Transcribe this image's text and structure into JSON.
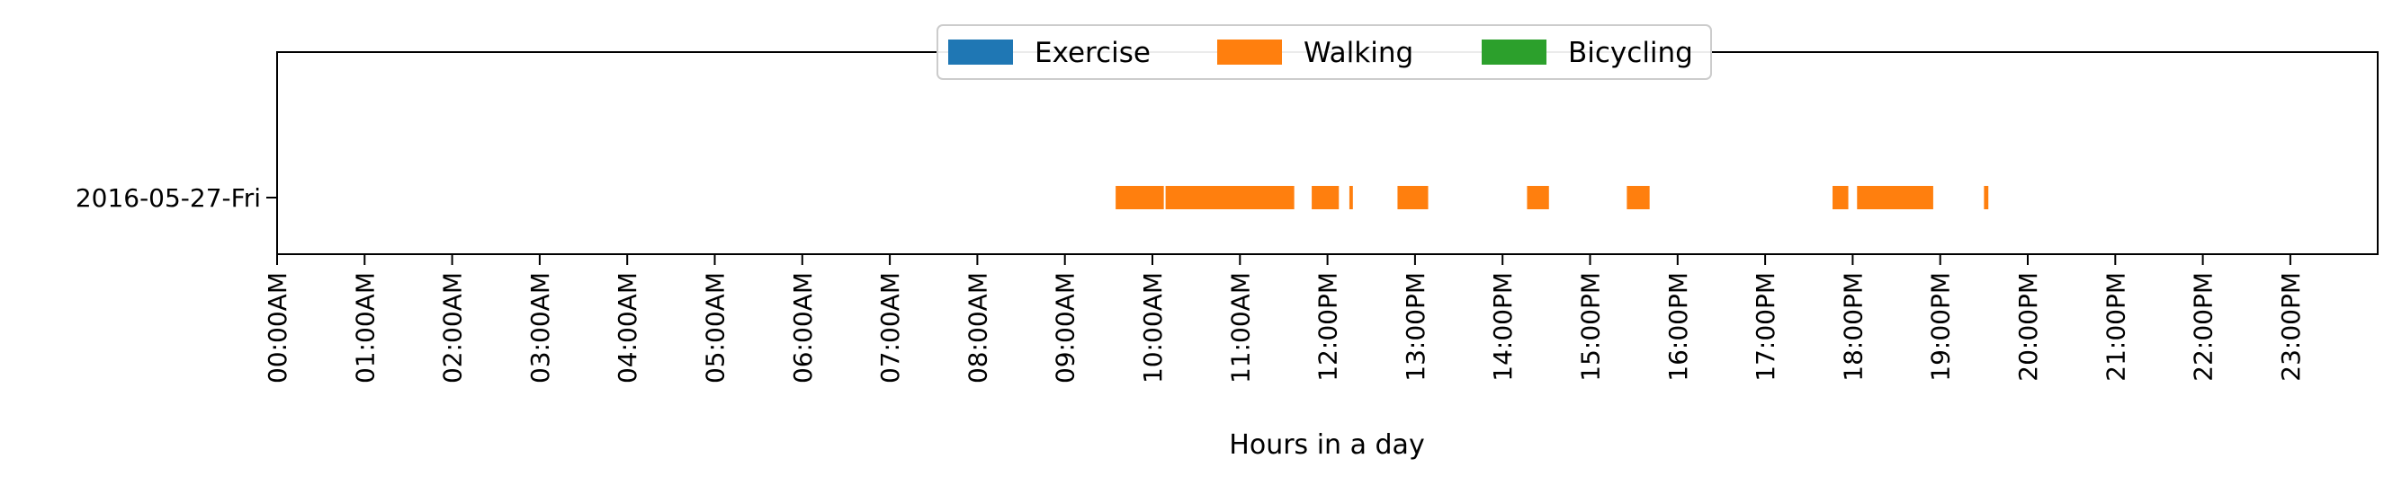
{
  "chart_data": {
    "type": "timeline",
    "xlabel": "Hours in a day",
    "x_unit": "hours",
    "xlim": [
      0,
      24
    ],
    "x_ticks": [
      {
        "value": 0,
        "label": "00:00AM"
      },
      {
        "value": 1,
        "label": "01:00AM"
      },
      {
        "value": 2,
        "label": "02:00AM"
      },
      {
        "value": 3,
        "label": "03:00AM"
      },
      {
        "value": 4,
        "label": "04:00AM"
      },
      {
        "value": 5,
        "label": "05:00AM"
      },
      {
        "value": 6,
        "label": "06:00AM"
      },
      {
        "value": 7,
        "label": "07:00AM"
      },
      {
        "value": 8,
        "label": "08:00AM"
      },
      {
        "value": 9,
        "label": "09:00AM"
      },
      {
        "value": 10,
        "label": "10:00AM"
      },
      {
        "value": 11,
        "label": "11:00AM"
      },
      {
        "value": 12,
        "label": "12:00PM"
      },
      {
        "value": 13,
        "label": "13:00PM"
      },
      {
        "value": 14,
        "label": "14:00PM"
      },
      {
        "value": 15,
        "label": "15:00PM"
      },
      {
        "value": 16,
        "label": "16:00PM"
      },
      {
        "value": 17,
        "label": "17:00PM"
      },
      {
        "value": 18,
        "label": "18:00PM"
      },
      {
        "value": 19,
        "label": "19:00PM"
      },
      {
        "value": 20,
        "label": "20:00PM"
      },
      {
        "value": 21,
        "label": "21:00PM"
      },
      {
        "value": 22,
        "label": "22:00PM"
      },
      {
        "value": 23,
        "label": "23:00PM"
      }
    ],
    "rows": [
      "2016-05-27-Fri"
    ],
    "legend_position": "top-center",
    "grid": false,
    "series": [
      {
        "name": "Exercise",
        "color": "#1f77b4",
        "segments": []
      },
      {
        "name": "Walking",
        "color": "#ff7f0e",
        "segments": [
          {
            "row": "2016-05-27-Fri",
            "start": 9.58,
            "end": 10.13
          },
          {
            "row": "2016-05-27-Fri",
            "start": 10.15,
            "end": 11.62
          },
          {
            "row": "2016-05-27-Fri",
            "start": 11.82,
            "end": 12.13
          },
          {
            "row": "2016-05-27-Fri",
            "start": 12.25,
            "end": 12.29
          },
          {
            "row": "2016-05-27-Fri",
            "start": 12.8,
            "end": 13.15
          },
          {
            "row": "2016-05-27-Fri",
            "start": 14.28,
            "end": 14.53
          },
          {
            "row": "2016-05-27-Fri",
            "start": 15.42,
            "end": 15.68
          },
          {
            "row": "2016-05-27-Fri",
            "start": 17.77,
            "end": 17.95
          },
          {
            "row": "2016-05-27-Fri",
            "start": 18.05,
            "end": 18.92
          },
          {
            "row": "2016-05-27-Fri",
            "start": 19.5,
            "end": 19.55
          }
        ]
      },
      {
        "name": "Bicycling",
        "color": "#2ca02c",
        "segments": []
      }
    ]
  }
}
